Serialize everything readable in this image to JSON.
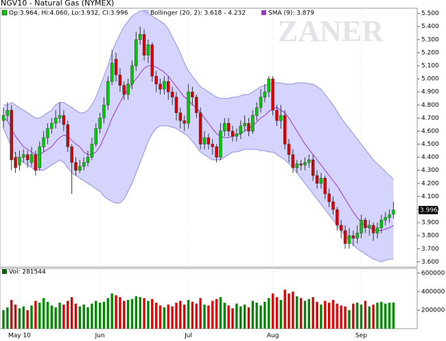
{
  "chart_data": [
    {
      "type": "candlestick",
      "title": "NGV10 - Natural Gas (NYMEX)",
      "watermark": "ZANER",
      "legend": "Op:3.964, Hi:4.060, Lo:3.932, Cl:3.996",
      "last_label": "3.996",
      "categories": [
        null,
        null,
        null,
        null,
        "May 10",
        null,
        null,
        null,
        null,
        null,
        null,
        null,
        null,
        null,
        null,
        null,
        null,
        null,
        null,
        null,
        null,
        null,
        null,
        null,
        "Jun",
        null,
        null,
        null,
        null,
        null,
        null,
        null,
        null,
        null,
        null,
        null,
        null,
        null,
        null,
        null,
        null,
        null,
        null,
        null,
        null,
        null,
        "Jul",
        null,
        null,
        null,
        null,
        null,
        null,
        null,
        null,
        null,
        null,
        null,
        null,
        null,
        null,
        null,
        null,
        null,
        null,
        null,
        null,
        "Aug",
        null,
        null,
        null,
        null,
        null,
        null,
        null,
        null,
        null,
        null,
        null,
        null,
        null,
        null,
        null,
        null,
        null,
        null,
        null,
        null,
        null,
        "Sep",
        null,
        null,
        null,
        null,
        null,
        null,
        null,
        null
      ],
      "open": [
        4.68,
        4.72,
        4.76,
        4.4,
        4.34,
        4.4,
        4.42,
        4.36,
        4.42,
        4.32,
        4.48,
        4.55,
        4.62,
        4.66,
        4.7,
        4.72,
        4.65,
        4.48,
        4.36,
        4.3,
        4.33,
        4.36,
        4.4,
        4.5,
        4.62,
        4.7,
        4.8,
        4.98,
        5.15,
        5.03,
        4.95,
        4.88,
        4.96,
        5.1,
        5.3,
        5.34,
        5.18,
        5.26,
        5.02,
        4.96,
        4.92,
        4.98,
        4.9,
        4.86,
        4.74,
        4.68,
        4.66,
        4.9,
        4.86,
        4.74,
        4.5,
        4.55,
        4.5,
        4.48,
        4.4,
        4.6,
        4.66,
        4.6,
        4.56,
        4.58,
        4.64,
        4.66,
        4.6,
        4.72,
        4.78,
        4.86,
        4.9,
        5.0,
        4.76,
        4.68,
        4.72,
        4.5,
        4.42,
        4.32,
        4.35,
        4.34,
        4.36,
        4.38,
        4.26,
        4.2,
        4.24,
        4.12,
        4.06,
        4.0,
        3.88,
        3.84,
        3.74,
        3.8,
        3.78,
        3.82,
        3.92,
        3.86,
        3.88,
        3.82,
        3.86,
        3.92,
        3.94,
        3.964
      ],
      "high": [
        4.78,
        4.82,
        4.8,
        4.44,
        4.45,
        4.46,
        4.45,
        4.48,
        4.45,
        4.52,
        4.6,
        4.66,
        4.7,
        4.76,
        4.82,
        4.76,
        4.68,
        4.5,
        4.4,
        4.38,
        4.4,
        4.45,
        4.55,
        4.66,
        4.74,
        4.86,
        5.02,
        5.22,
        5.2,
        5.08,
        4.98,
        5.0,
        5.14,
        5.36,
        5.4,
        5.38,
        5.3,
        5.28,
        5.06,
        5.0,
        5.02,
        5.02,
        4.94,
        4.9,
        4.78,
        4.72,
        4.96,
        4.94,
        4.88,
        4.78,
        4.6,
        4.58,
        4.54,
        4.5,
        4.66,
        4.7,
        4.7,
        4.64,
        4.62,
        4.68,
        4.72,
        4.7,
        4.76,
        4.82,
        4.92,
        4.96,
        5.02,
        5.02,
        4.8,
        4.8,
        4.76,
        4.54,
        4.46,
        4.38,
        4.38,
        4.4,
        4.42,
        4.42,
        4.3,
        4.28,
        4.26,
        4.16,
        4.1,
        4.02,
        3.92,
        3.88,
        3.86,
        3.84,
        3.88,
        3.96,
        3.94,
        3.92,
        3.9,
        3.9,
        3.96,
        3.98,
        4.0,
        4.06
      ],
      "low": [
        4.62,
        4.68,
        4.3,
        4.28,
        4.3,
        4.36,
        4.32,
        4.33,
        4.26,
        4.3,
        4.44,
        4.5,
        4.58,
        4.62,
        4.66,
        4.6,
        4.44,
        4.12,
        4.26,
        4.28,
        4.3,
        4.33,
        4.38,
        4.48,
        4.58,
        4.66,
        4.76,
        4.95,
        4.98,
        4.9,
        4.84,
        4.84,
        4.92,
        5.06,
        5.26,
        5.14,
        5.12,
        4.98,
        4.9,
        4.88,
        4.88,
        4.84,
        4.8,
        4.68,
        4.62,
        4.6,
        4.62,
        4.8,
        4.7,
        4.46,
        4.46,
        4.46,
        4.42,
        4.36,
        4.38,
        4.56,
        4.56,
        4.52,
        4.52,
        4.54,
        4.6,
        4.56,
        4.58,
        4.68,
        4.74,
        4.82,
        4.86,
        4.72,
        4.64,
        4.62,
        4.46,
        4.36,
        4.28,
        4.28,
        4.3,
        4.3,
        4.32,
        4.22,
        4.16,
        4.16,
        4.08,
        4.02,
        3.96,
        3.84,
        3.78,
        3.7,
        3.7,
        3.72,
        3.74,
        3.78,
        3.82,
        3.8,
        3.76,
        3.78,
        3.82,
        3.88,
        3.9,
        3.932
      ],
      "close": [
        4.72,
        4.76,
        4.38,
        4.32,
        4.4,
        4.42,
        4.38,
        4.42,
        4.3,
        4.48,
        4.55,
        4.62,
        4.66,
        4.7,
        4.72,
        4.65,
        4.48,
        4.36,
        4.3,
        4.33,
        4.36,
        4.4,
        4.5,
        4.62,
        4.7,
        4.8,
        4.98,
        5.12,
        5.03,
        4.95,
        4.88,
        4.96,
        5.1,
        5.3,
        5.34,
        5.18,
        5.26,
        5.02,
        4.96,
        4.92,
        4.98,
        4.9,
        4.86,
        4.74,
        4.68,
        4.66,
        4.9,
        4.86,
        4.74,
        4.5,
        4.55,
        4.5,
        4.48,
        4.4,
        4.6,
        4.66,
        4.6,
        4.56,
        4.58,
        4.64,
        4.66,
        4.6,
        4.72,
        4.78,
        4.86,
        4.9,
        5.0,
        4.76,
        4.68,
        4.72,
        4.5,
        4.42,
        4.32,
        4.35,
        4.34,
        4.36,
        4.38,
        4.26,
        4.2,
        4.24,
        4.12,
        4.06,
        4.0,
        3.88,
        3.84,
        3.74,
        3.8,
        3.78,
        3.82,
        3.92,
        3.86,
        3.88,
        3.82,
        3.86,
        3.92,
        3.94,
        3.96,
        3.996
      ],
      "up_color": "#00cc00",
      "down_color": "#dd0000",
      "bands": {
        "label": "Bollinger (20, 2): 3.618 - 4.232",
        "color": "#ccccff",
        "upper": [
          4.8,
          4.8,
          4.82,
          4.8,
          4.78,
          4.76,
          4.74,
          4.72,
          4.7,
          4.7,
          4.72,
          4.74,
          4.76,
          4.8,
          4.82,
          4.82,
          4.8,
          4.78,
          4.76,
          4.74,
          4.74,
          4.76,
          4.8,
          4.86,
          4.94,
          5.02,
          5.1,
          5.2,
          5.28,
          5.34,
          5.4,
          5.44,
          5.48,
          5.5,
          5.52,
          5.52,
          5.5,
          5.48,
          5.46,
          5.44,
          5.42,
          5.38,
          5.32,
          5.26,
          5.2,
          5.12,
          5.06,
          5.02,
          4.98,
          4.94,
          4.92,
          4.9,
          4.88,
          4.86,
          4.85,
          4.85,
          4.85,
          4.86,
          4.86,
          4.87,
          4.88,
          4.88,
          4.9,
          4.92,
          4.94,
          4.95,
          4.96,
          4.97,
          4.97,
          4.97,
          4.96,
          4.96,
          4.96,
          4.97,
          4.97,
          4.97,
          4.96,
          4.96,
          4.94,
          4.92,
          4.88,
          4.84,
          4.8,
          4.75,
          4.7,
          4.66,
          4.62,
          4.58,
          4.54,
          4.5,
          4.46,
          4.42,
          4.38,
          4.35,
          4.32,
          4.29,
          4.26,
          4.232
        ],
        "lower": [
          4.62,
          4.55,
          4.48,
          4.42,
          4.38,
          4.36,
          4.34,
          4.32,
          4.3,
          4.3,
          4.3,
          4.32,
          4.34,
          4.36,
          4.38,
          4.36,
          4.32,
          4.28,
          4.26,
          4.24,
          4.22,
          4.2,
          4.18,
          4.16,
          4.14,
          4.1,
          4.08,
          4.06,
          4.05,
          4.05,
          4.08,
          4.14,
          4.2,
          4.28,
          4.36,
          4.44,
          4.52,
          4.58,
          4.62,
          4.64,
          4.64,
          4.64,
          4.63,
          4.62,
          4.6,
          4.58,
          4.56,
          4.52,
          4.48,
          4.44,
          4.42,
          4.4,
          4.38,
          4.38,
          4.38,
          4.4,
          4.42,
          4.44,
          4.44,
          4.45,
          4.46,
          4.46,
          4.46,
          4.46,
          4.45,
          4.45,
          4.44,
          4.44,
          4.42,
          4.4,
          4.38,
          4.35,
          4.32,
          4.28,
          4.24,
          4.2,
          4.16,
          4.12,
          4.08,
          4.04,
          4.0,
          3.96,
          3.92,
          3.88,
          3.84,
          3.8,
          3.76,
          3.73,
          3.7,
          3.68,
          3.66,
          3.64,
          3.62,
          3.61,
          3.6,
          3.61,
          3.62,
          3.618
        ]
      },
      "sma": {
        "label": "SMA (9): 3.879",
        "color": "#9933cc",
        "values": [
          4.7,
          4.68,
          4.62,
          4.56,
          4.52,
          4.48,
          4.46,
          4.44,
          4.42,
          4.42,
          4.44,
          4.46,
          4.48,
          4.52,
          4.55,
          4.57,
          4.56,
          4.53,
          4.5,
          4.48,
          4.44,
          4.42,
          4.42,
          4.44,
          4.48,
          4.55,
          4.62,
          4.7,
          4.76,
          4.82,
          4.88,
          4.92,
          4.96,
          5.0,
          5.04,
          5.08,
          5.1,
          5.1,
          5.09,
          5.07,
          5.05,
          5.02,
          4.98,
          4.94,
          4.9,
          4.86,
          4.84,
          4.8,
          4.78,
          4.74,
          4.7,
          4.66,
          4.62,
          4.58,
          4.56,
          4.55,
          4.55,
          4.56,
          4.57,
          4.58,
          4.6,
          4.62,
          4.64,
          4.67,
          4.7,
          4.72,
          4.75,
          4.77,
          4.78,
          4.76,
          4.74,
          4.7,
          4.65,
          4.6,
          4.55,
          4.5,
          4.46,
          4.42,
          4.38,
          4.34,
          4.3,
          4.26,
          4.22,
          4.18,
          4.13,
          4.08,
          4.03,
          3.98,
          3.94,
          3.9,
          3.88,
          3.86,
          3.85,
          3.84,
          3.84,
          3.85,
          3.86,
          3.879
        ]
      },
      "ylim": [
        3.56,
        5.54
      ],
      "yticks": [
        {
          "value": 3.6,
          "label": "3.600"
        },
        {
          "value": 3.7,
          "label": "3.700"
        },
        {
          "value": 3.8,
          "label": "3.800"
        },
        {
          "value": 3.9,
          "label": "3.900"
        },
        {
          "value": 4.0,
          "label": "4.000"
        },
        {
          "value": 4.1,
          "label": "4.100"
        },
        {
          "value": 4.2,
          "label": "4.200"
        },
        {
          "value": 4.3,
          "label": "4.300"
        },
        {
          "value": 4.4,
          "label": "4.400"
        },
        {
          "value": 4.5,
          "label": "4.500"
        },
        {
          "value": 4.6,
          "label": "4.600"
        },
        {
          "value": 4.7,
          "label": "4.700"
        },
        {
          "value": 4.8,
          "label": "4.800"
        },
        {
          "value": 4.9,
          "label": "4.900"
        },
        {
          "value": 5.0,
          "label": "5.000"
        },
        {
          "value": 5.1,
          "label": "5.100"
        },
        {
          "value": 5.2,
          "label": "5.200"
        },
        {
          "value": 5.3,
          "label": "5.300"
        },
        {
          "value": 5.4,
          "label": "5.400"
        },
        {
          "value": 5.5,
          "label": "5.500"
        }
      ]
    },
    {
      "type": "bar",
      "legend": "Vol: 281544",
      "color": "#006600",
      "values": [
        200000,
        230000,
        310000,
        260000,
        220000,
        240000,
        200000,
        250000,
        300000,
        280000,
        330000,
        290000,
        250000,
        230000,
        280000,
        260000,
        300000,
        340000,
        270000,
        240000,
        260000,
        230000,
        270000,
        300000,
        280000,
        290000,
        330000,
        380000,
        360000,
        340000,
        300000,
        310000,
        320000,
        350000,
        340000,
        330000,
        300000,
        320000,
        280000,
        250000,
        230000,
        260000,
        240000,
        280000,
        300000,
        260000,
        310000,
        290000,
        270000,
        330000,
        260000,
        250000,
        300000,
        320000,
        340000,
        280000,
        250000,
        220000,
        270000,
        240000,
        260000,
        230000,
        300000,
        280000,
        250000,
        290000,
        330000,
        380000,
        340000,
        310000,
        420000,
        380000,
        400000,
        350000,
        330000,
        300000,
        320000,
        340000,
        290000,
        260000,
        300000,
        280000,
        310000,
        270000,
        250000,
        240000,
        200000,
        270000,
        280000,
        260000,
        300000,
        240000,
        260000,
        280000,
        290000,
        270000,
        280000,
        281544
      ],
      "ylim": [
        0,
        650000
      ],
      "yticks": [
        200000,
        400000,
        600000
      ]
    }
  ]
}
